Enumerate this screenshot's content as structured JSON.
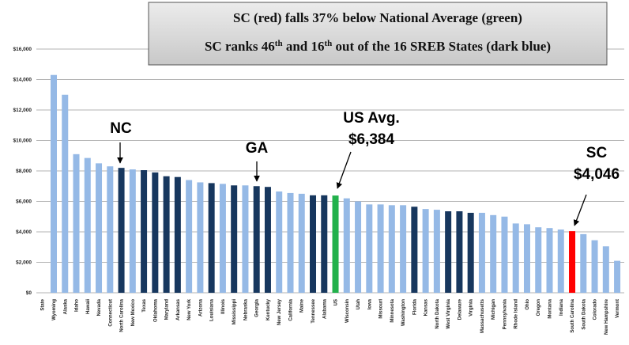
{
  "chart_data": {
    "type": "bar",
    "title": [
      "SC (red) falls 37% below National Average (green)",
      [
        "SC ranks 46",
        "th",
        " and 16",
        "th",
        " out of the 16 SREB States (dark blue)"
      ]
    ],
    "categories": [
      "State",
      "Wyoming",
      "Alaska",
      "Idaho",
      "Hawaii",
      "Nevada",
      "Connecticut",
      "North Carolina",
      "New Mexico",
      "Texas",
      "Oklahoma",
      "Maryland",
      "Arkansas",
      "New York",
      "Arizona",
      "Louisiana",
      "Illinois",
      "Mississippi",
      "Nebraska",
      "Georgia",
      "Kentucky",
      "New Jersey",
      "California",
      "Maine",
      "Tennessee",
      "Alabama",
      "US",
      "Wisconsin",
      "Utah",
      "Iowa",
      "Missouri",
      "Minnesota",
      "Washington",
      "Florida",
      "Kansas",
      "North Dakota",
      "West Virginia",
      "Delaware",
      "Virginia",
      "Massachusetts",
      "Michigan",
      "Pennsylvania",
      "Rhode Island",
      "Ohio",
      "Oregon",
      "Montana",
      "Indiana",
      "South Carolina",
      "South Dakota",
      "Colorado",
      "New Hampshire",
      "Vermont"
    ],
    "values": [
      null,
      14300,
      13000,
      9100,
      8850,
      8500,
      8300,
      8200,
      8100,
      8050,
      7900,
      7650,
      7600,
      7400,
      7250,
      7200,
      7150,
      7050,
      7050,
      7000,
      6950,
      6650,
      6550,
      6500,
      6400,
      6400,
      6384,
      6200,
      6000,
      5800,
      5800,
      5750,
      5750,
      5650,
      5500,
      5450,
      5350,
      5350,
      5250,
      5250,
      5100,
      5000,
      4550,
      4500,
      4300,
      4250,
      4150,
      4046,
      3850,
      3450,
      3050,
      2100
    ],
    "colors": [
      "#95b9e6",
      "#95b9e6",
      "#95b9e6",
      "#95b9e6",
      "#95b9e6",
      "#95b9e6",
      "#95b9e6",
      "#17375e",
      "#95b9e6",
      "#17375e",
      "#17375e",
      "#17375e",
      "#17375e",
      "#95b9e6",
      "#95b9e6",
      "#17375e",
      "#95b9e6",
      "#17375e",
      "#95b9e6",
      "#17375e",
      "#17375e",
      "#95b9e6",
      "#95b9e6",
      "#95b9e6",
      "#17375e",
      "#17375e",
      "#22b14c",
      "#95b9e6",
      "#95b9e6",
      "#95b9e6",
      "#95b9e6",
      "#95b9e6",
      "#95b9e6",
      "#17375e",
      "#95b9e6",
      "#95b9e6",
      "#17375e",
      "#17375e",
      "#17375e",
      "#95b9e6",
      "#95b9e6",
      "#95b9e6",
      "#95b9e6",
      "#95b9e6",
      "#95b9e6",
      "#95b9e6",
      "#95b9e6",
      "#ff0000",
      "#95b9e6",
      "#95b9e6",
      "#95b9e6",
      "#95b9e6"
    ],
    "ylim": [
      0,
      16000
    ],
    "yticks": [
      {
        "value": 0,
        "label": "$0"
      },
      {
        "value": 2000,
        "label": "$2,000"
      },
      {
        "value": 4000,
        "label": "$4,000"
      },
      {
        "value": 6000,
        "label": "$6,000"
      },
      {
        "value": 8000,
        "label": "$8,000"
      },
      {
        "value": 10000,
        "label": "$10,000"
      },
      {
        "value": 12000,
        "label": "$12,000"
      },
      {
        "value": 14000,
        "label": "$14,000"
      },
      {
        "value": 16000,
        "label": "$16,000"
      }
    ],
    "grid": true,
    "annotations": [
      [
        "NC"
      ],
      [
        "GA"
      ],
      [
        "US Avg.",
        "$6,384"
      ],
      [
        "SC",
        "$4,046"
      ]
    ]
  }
}
